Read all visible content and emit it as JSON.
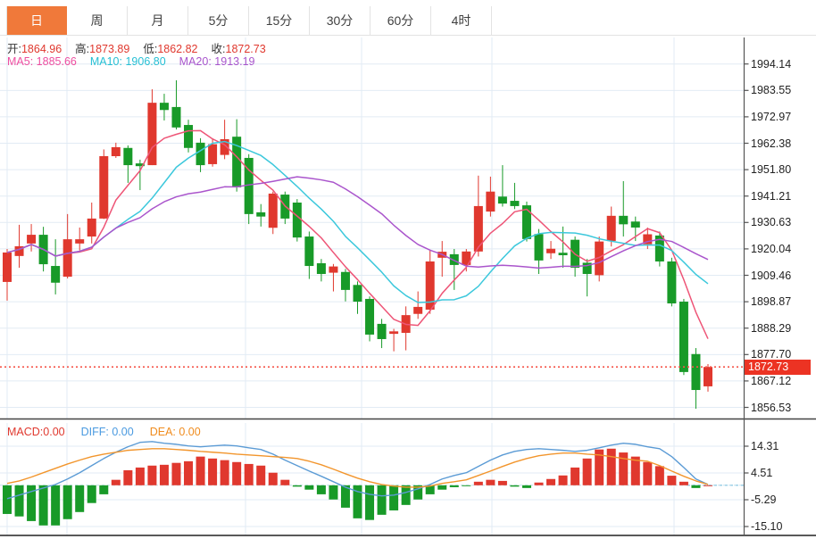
{
  "tabs": {
    "items": [
      {
        "label": "日",
        "active": true
      },
      {
        "label": "周",
        "active": false
      },
      {
        "label": "月",
        "active": false
      },
      {
        "label": "5分",
        "active": false
      },
      {
        "label": "15分",
        "active": false
      },
      {
        "label": "30分",
        "active": false
      },
      {
        "label": "60分",
        "active": false
      },
      {
        "label": "4时",
        "active": false
      }
    ]
  },
  "ohlc": {
    "open_label": "开:",
    "open": "1864.96",
    "high_label": "高:",
    "high": "1873.89",
    "low_label": "低:",
    "low": "1862.82",
    "close_label": "收:",
    "close": "1872.73"
  },
  "ma": {
    "ma5_label": "MA5:",
    "ma5": "1885.66",
    "ma10_label": "MA10:",
    "ma10": "1906.80",
    "ma20_label": "MA20:",
    "ma20": "1913.19"
  },
  "macd_info": {
    "macd_label": "MACD:",
    "macd": "0.00",
    "diff_label": "DIFF:",
    "diff": "0.00",
    "dea_label": "DEA:",
    "dea": "0.00"
  },
  "price_axis": {
    "labels": [
      "1994.14",
      "1983.55",
      "1972.97",
      "1962.38",
      "1951.80",
      "1941.21",
      "1930.63",
      "1920.04",
      "1909.46",
      "1898.87",
      "1888.29",
      "1877.70",
      "1867.12",
      "1856.53"
    ]
  },
  "macd_axis": {
    "labels": [
      "14.31",
      "4.51",
      "-5.29",
      "-15.10"
    ]
  },
  "current_price": {
    "label": "1872.73",
    "value": 1872.73
  },
  "colors": {
    "up": "#e0382e",
    "down": "#189a28",
    "ma5": "#ee5577",
    "ma10": "#3cc8dc",
    "ma20": "#aa55cc",
    "diff_line": "#5b9bd5",
    "dea_line": "#f2952c",
    "tab_active": "#f0793a",
    "badge": "#ec3323",
    "grid": "#e2ebf4",
    "dotted_price_line": "#f5564a"
  },
  "chart_data": {
    "type": "candlestick",
    "title": "",
    "panels": [
      {
        "name": "price",
        "type": "candlestick",
        "y_ticks": [
          1994.14,
          1983.55,
          1972.97,
          1962.38,
          1951.8,
          1941.21,
          1930.63,
          1920.04,
          1909.46,
          1898.87,
          1888.29,
          1877.7,
          1867.12,
          1856.53
        ],
        "ma_periods": [
          5,
          10,
          20
        ],
        "candles_ohlc": [
          [
            1906.8,
            1920.0,
            1899.3,
            1918.6
          ],
          [
            1917.2,
            1929.7,
            1912.5,
            1921.1
          ],
          [
            1922.2,
            1930.0,
            1919.0,
            1925.7
          ],
          [
            1925.7,
            1928.9,
            1911.0,
            1913.9
          ],
          [
            1913.2,
            1923.9,
            1901.8,
            1906.5
          ],
          [
            1908.9,
            1934.0,
            1908.2,
            1923.9
          ],
          [
            1922.2,
            1928.6,
            1919.4,
            1923.9
          ],
          [
            1925.0,
            1938.6,
            1922.2,
            1932.2
          ],
          [
            1932.2,
            1959.9,
            1932.0,
            1957.2
          ],
          [
            1957.2,
            1962.6,
            1956.5,
            1960.8
          ],
          [
            1960.5,
            1961.5,
            1946.5,
            1953.6
          ],
          [
            1954.3,
            1955.8,
            1943.6,
            1953.2
          ],
          [
            1953.6,
            1984.0,
            1953.6,
            1978.6
          ],
          [
            1978.6,
            1982.2,
            1971.5,
            1975.7
          ],
          [
            1976.9,
            1987.6,
            1967.9,
            1968.7
          ],
          [
            1969.7,
            1971.8,
            1958.7,
            1960.5
          ],
          [
            1962.6,
            1964.4,
            1950.8,
            1953.6
          ],
          [
            1954.0,
            1964.0,
            1953.0,
            1962.0
          ],
          [
            1957.7,
            1971.8,
            1956.0,
            1964.0
          ],
          [
            1965.0,
            1972.0,
            1943.0,
            1944.7
          ],
          [
            1956.5,
            1958.0,
            1930.0,
            1934.0
          ],
          [
            1934.7,
            1938.0,
            1929.0,
            1933.0
          ],
          [
            1928.5,
            1943.0,
            1926.0,
            1942.2
          ],
          [
            1941.8,
            1943.0,
            1930.0,
            1932.2
          ],
          [
            1938.6,
            1940.0,
            1923.0,
            1924.6
          ],
          [
            1925.0,
            1927.0,
            1908.0,
            1913.2
          ],
          [
            1914.3,
            1916.0,
            1907.0,
            1910.0
          ],
          [
            1910.5,
            1914.0,
            1903.0,
            1913.0
          ],
          [
            1910.8,
            1912.0,
            1899.0,
            1903.6
          ],
          [
            1905.6,
            1907.0,
            1894.0,
            1898.9
          ],
          [
            1900.0,
            1901.0,
            1883.0,
            1885.7
          ],
          [
            1890.0,
            1892.0,
            1880.3,
            1883.9
          ],
          [
            1886.0,
            1888.0,
            1879.0,
            1887.0
          ],
          [
            1886.4,
            1897.0,
            1879.4,
            1893.5
          ],
          [
            1894.0,
            1903.0,
            1892.0,
            1896.8
          ],
          [
            1895.7,
            1919.7,
            1894.0,
            1915.0
          ],
          [
            1916.5,
            1923.2,
            1908.9,
            1918.9
          ],
          [
            1917.9,
            1920.0,
            1903.6,
            1913.6
          ],
          [
            1913.6,
            1920.0,
            1911.0,
            1919.0
          ],
          [
            1919.0,
            1949.4,
            1917.0,
            1937.2
          ],
          [
            1935.0,
            1949.0,
            1933.0,
            1943.0
          ],
          [
            1941.0,
            1953.6,
            1937.0,
            1938.2
          ],
          [
            1939.3,
            1946.5,
            1936.0,
            1937.2
          ],
          [
            1937.5,
            1939.0,
            1923.0,
            1924.0
          ],
          [
            1926.0,
            1928.0,
            1910.0,
            1915.4
          ],
          [
            1918.3,
            1923.2,
            1916.0,
            1920.1
          ],
          [
            1918.5,
            1929.0,
            1912.5,
            1917.5
          ],
          [
            1923.7,
            1925.0,
            1908.9,
            1912.5
          ],
          [
            1914.5,
            1916.0,
            1901.0,
            1910.0
          ],
          [
            1909.5,
            1925.0,
            1907.0,
            1923.0
          ],
          [
            1923.2,
            1937.0,
            1921.0,
            1933.3
          ],
          [
            1933.3,
            1947.2,
            1925.0,
            1929.9
          ],
          [
            1931.0,
            1933.0,
            1923.2,
            1928.6
          ],
          [
            1921.9,
            1928.6,
            1920.0,
            1925.9
          ],
          [
            1925.4,
            1927.0,
            1913.0,
            1915.0
          ],
          [
            1915.0,
            1916.5,
            1897.0,
            1898.2
          ],
          [
            1898.9,
            1900.0,
            1869.5,
            1870.7
          ],
          [
            1877.9,
            1880.3,
            1856.0,
            1863.5
          ],
          [
            1864.96,
            1873.89,
            1862.82,
            1872.73
          ]
        ]
      },
      {
        "name": "macd",
        "type": "macd",
        "y_ticks": [
          14.31,
          4.51,
          -5.29,
          -15.1
        ],
        "hist": [
          -10.5,
          -11.4,
          -13.1,
          -14.7,
          -14.7,
          -12.4,
          -9.8,
          -6.5,
          -3.3,
          2.0,
          5.5,
          6.5,
          7.2,
          7.5,
          8.2,
          8.8,
          10.5,
          9.8,
          9.2,
          8.5,
          7.8,
          7.2,
          4.6,
          2.0,
          -0.5,
          -1.6,
          -3.3,
          -5.2,
          -8.2,
          -12.1,
          -12.7,
          -10.8,
          -9.2,
          -7.2,
          -5.2,
          -3.3,
          -1.6,
          -0.7,
          -0.3,
          1.3,
          2.0,
          1.6,
          -0.5,
          -1.0,
          1.0,
          2.3,
          3.6,
          6.5,
          9.8,
          13.1,
          13.4,
          12.0,
          10.5,
          8.5,
          7.0,
          3.5,
          1.3,
          -1.0,
          0.0
        ],
        "diff": [
          -4.9,
          -3.6,
          -2.3,
          -1.0,
          0.3,
          2.3,
          4.6,
          7.2,
          9.8,
          12.1,
          14.1,
          15.7,
          16.0,
          15.4,
          15.0,
          14.4,
          14.1,
          14.4,
          14.7,
          14.4,
          13.7,
          13.1,
          11.4,
          9.2,
          7.2,
          5.2,
          3.3,
          1.3,
          -0.7,
          -2.3,
          -3.3,
          -3.9,
          -3.6,
          -2.6,
          -1.3,
          0.3,
          2.3,
          3.6,
          4.6,
          6.9,
          9.2,
          11.1,
          12.4,
          13.1,
          13.4,
          13.1,
          12.8,
          12.4,
          12.8,
          13.7,
          14.7,
          15.4,
          15.0,
          14.1,
          13.4,
          10.5,
          6.5,
          2.3,
          0.3
        ],
        "dea": [
          0.7,
          1.6,
          3.0,
          4.6,
          6.2,
          7.8,
          9.2,
          10.5,
          11.4,
          12.1,
          12.8,
          13.1,
          13.4,
          13.4,
          13.1,
          12.8,
          12.4,
          12.1,
          11.8,
          11.4,
          11.1,
          10.8,
          10.5,
          10.2,
          9.8,
          8.8,
          7.5,
          5.9,
          4.2,
          2.6,
          1.3,
          0.3,
          -0.3,
          -0.7,
          -0.7,
          -0.3,
          0.7,
          1.3,
          2.0,
          3.6,
          5.2,
          6.9,
          8.5,
          9.8,
          10.8,
          11.4,
          11.8,
          11.8,
          11.4,
          11.1,
          10.5,
          9.8,
          9.2,
          8.8,
          7.2,
          5.2,
          3.3,
          1.6,
          0.3
        ]
      }
    ],
    "current_price": 1872.73
  }
}
